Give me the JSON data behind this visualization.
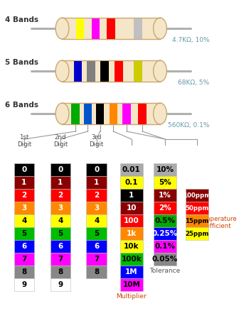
{
  "bg_color": "#ffffff",
  "resistor_body_color": "#f5e6c8",
  "resistor_body_edge": "#c8a870",
  "wire_color": "#b0b0b0",
  "band_colors_4": [
    "#ffff00",
    "#ff00ff",
    "#ff0000",
    "#c0c0c0"
  ],
  "band_colors_5": [
    "#0000cc",
    "#808080",
    "#000000",
    "#ff0000",
    "#cccc00"
  ],
  "band_colors_6": [
    "#00aa00",
    "#0055cc",
    "#000000",
    "#ff8800",
    "#ff00ff",
    "#ff0000"
  ],
  "label_4": "4.7KΩ, 10%",
  "label_5": "68KΩ, 5%",
  "label_6": "560KΩ, 0.1%",
  "label_color": "#6699aa",
  "band_label_color": "#444444",
  "line_color": "#999999",
  "digit_colors": [
    "#000000",
    "#880000",
    "#ff0000",
    "#ff8800",
    "#ffff00",
    "#00bb00",
    "#0000ff",
    "#ff00ff",
    "#888888",
    "#ffffff"
  ],
  "digit_text_colors": [
    "#ffffff",
    "#ffffff",
    "#ffffff",
    "#ffffff",
    "#000000",
    "#000000",
    "#ffffff",
    "#000000",
    "#000000",
    "#000000"
  ],
  "digit_labels": [
    "0",
    "1",
    "2",
    "3",
    "4",
    "5",
    "6",
    "7",
    "8",
    "9"
  ],
  "mult_top_colors": [
    "#aaaaaa",
    "#ffff00"
  ],
  "mult_top_texts": [
    "0.01",
    "0.1"
  ],
  "mult_top_textcolors": [
    "#000000",
    "#000000"
  ],
  "mult_colors": [
    "#000000",
    "#880000",
    "#ff0000",
    "#ff8800",
    "#ffff00",
    "#00bb00",
    "#0000ff",
    "#ff00ff"
  ],
  "mult_texts": [
    "1",
    "10",
    "100",
    "1k",
    "10k",
    "100k",
    "1M",
    "10M"
  ],
  "mult_textcolors": [
    "#ffffff",
    "#ffffff",
    "#ffffff",
    "#ffffff",
    "#000000",
    "#000000",
    "#ffffff",
    "#000000"
  ],
  "tol_top_colors": [
    "#aaaaaa",
    "#ffff00"
  ],
  "tol_top_texts": [
    "10%",
    "5%"
  ],
  "tol_top_textcolors": [
    "#000000",
    "#000000"
  ],
  "tol_colors": [
    "#880000",
    "#ff0000",
    "#00aa00",
    "#0000ff",
    "#ff00ff",
    "#888888"
  ],
  "tol_texts": [
    "1%",
    "2%",
    "0.5%",
    "0.25%",
    "0.1%",
    "0.05%"
  ],
  "tol_textcolors": [
    "#ffffff",
    "#ffffff",
    "#000000",
    "#ffffff",
    "#000000",
    "#000000"
  ],
  "temp_colors": [
    "#880000",
    "#ff0000",
    "#ff8800",
    "#ffff00"
  ],
  "temp_texts": [
    "100ppm",
    "50ppm",
    "15ppm",
    "25ppm"
  ],
  "temp_textcolors": [
    "#ffffff",
    "#ffffff",
    "#000000",
    "#000000"
  ]
}
